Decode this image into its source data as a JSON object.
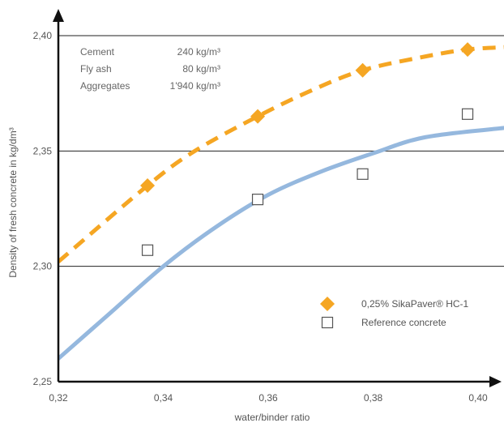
{
  "chart_data": {
    "type": "scatter",
    "xlabel": "water/binder ratio",
    "ylabel": "Density of fresh concrete in kg/dm³",
    "xlim": [
      0.32,
      0.405
    ],
    "ylim": [
      2.25,
      2.4
    ],
    "x_ticks": [
      "0,32",
      "0,34",
      "0,36",
      "0,38",
      "0,40"
    ],
    "y_ticks": [
      "2,25",
      "2,30",
      "2,35",
      "2,40"
    ],
    "grid": "horizontal",
    "colors": {
      "sikapaver": "#f5a623",
      "reference_curve": "#95b8de",
      "reference_marker": "#555555"
    },
    "info_box": [
      {
        "label": "Cement",
        "value": "240 kg/m³"
      },
      {
        "label": "Fly ash",
        "value": "80 kg/m³"
      },
      {
        "label": "Aggregates",
        "value": "1'940 kg/m³"
      }
    ],
    "series": [
      {
        "name": "0,25% SikaPaver® HC-1",
        "marker": "diamond",
        "line": "dashed",
        "points": [
          {
            "x": 0.337,
            "y": 2.335
          },
          {
            "x": 0.358,
            "y": 2.365
          },
          {
            "x": 0.378,
            "y": 2.385
          },
          {
            "x": 0.398,
            "y": 2.394
          }
        ],
        "curve": [
          {
            "x": 0.32,
            "y": 2.302
          },
          {
            "x": 0.337,
            "y": 2.335
          },
          {
            "x": 0.346,
            "y": 2.35
          },
          {
            "x": 0.358,
            "y": 2.365
          },
          {
            "x": 0.368,
            "y": 2.376
          },
          {
            "x": 0.378,
            "y": 2.385
          },
          {
            "x": 0.39,
            "y": 2.391
          },
          {
            "x": 0.398,
            "y": 2.394
          },
          {
            "x": 0.405,
            "y": 2.395
          }
        ]
      },
      {
        "name": "Reference concrete",
        "marker": "square",
        "line": "solid",
        "points": [
          {
            "x": 0.337,
            "y": 2.307
          },
          {
            "x": 0.358,
            "y": 2.329
          },
          {
            "x": 0.378,
            "y": 2.34
          },
          {
            "x": 0.398,
            "y": 2.366
          }
        ],
        "curve": [
          {
            "x": 0.32,
            "y": 2.26
          },
          {
            "x": 0.33,
            "y": 2.28
          },
          {
            "x": 0.34,
            "y": 2.3
          },
          {
            "x": 0.35,
            "y": 2.317
          },
          {
            "x": 0.36,
            "y": 2.331
          },
          {
            "x": 0.37,
            "y": 2.341
          },
          {
            "x": 0.38,
            "y": 2.349
          },
          {
            "x": 0.39,
            "y": 2.356
          },
          {
            "x": 0.405,
            "y": 2.36
          }
        ]
      }
    ]
  }
}
